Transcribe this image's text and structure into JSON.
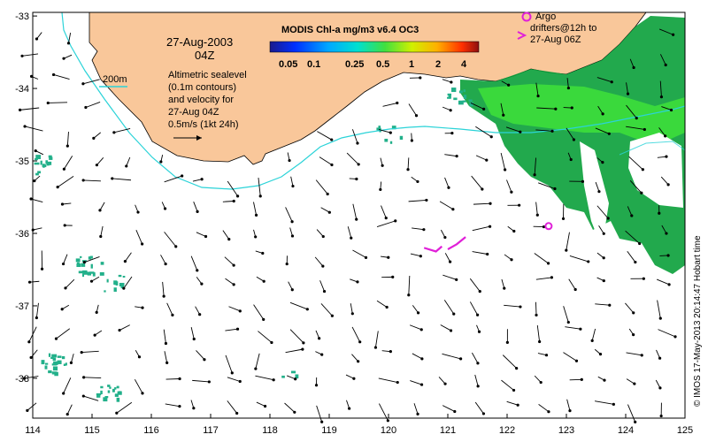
{
  "colors": {
    "land": "#f9c79a",
    "coastline": "#000000",
    "isobath": "#2bd3d8",
    "arrow": "#000000",
    "argo": "#e020d8",
    "chl_low": "#0aa03a",
    "chl_high": "#3ee23a",
    "chl_scatter": "#22b08a"
  },
  "date_line": "27-Aug-2003",
  "time_line": "04Z",
  "isobath_label": "200m",
  "altimetry_note": [
    "Altimetric sealevel",
    "(0.1m contours)",
    "and velocity for",
    "27-Aug 04Z"
  ],
  "scale_note": "0.5m/s (1kt 24h)",
  "colorbar": {
    "title": "MODIS Chl-a mg/m3 v6.4 OC3",
    "labels": [
      "0.05",
      "0.1",
      "0.25",
      "0.5",
      "1",
      "2",
      "4"
    ]
  },
  "argo_legend": [
    "Argo",
    "drifters@12h to",
    "27-Aug 06Z"
  ],
  "credit": "© IMOS 17-May-2013 20:14:47 Hobart time",
  "map_data": {
    "lon_ticks": [
      "114",
      "115",
      "116",
      "117",
      "118",
      "119",
      "120",
      "121",
      "122",
      "123",
      "124",
      "125"
    ],
    "lat_ticks": [
      "-33",
      "-34",
      "-35",
      "-36",
      "-37",
      "-38"
    ],
    "lon_range": [
      114,
      125
    ],
    "lat_range": [
      -38.55,
      -32.95
    ],
    "argo_float": {
      "lon": 122.7,
      "lat": -35.9
    },
    "argo_tracks": [
      [
        [
          120.6,
          -36.2
        ],
        [
          120.8,
          -36.25
        ],
        [
          120.9,
          -36.18
        ]
      ],
      [
        [
          121.0,
          -36.22
        ],
        [
          121.15,
          -36.15
        ],
        [
          121.3,
          -36.05
        ]
      ]
    ]
  }
}
